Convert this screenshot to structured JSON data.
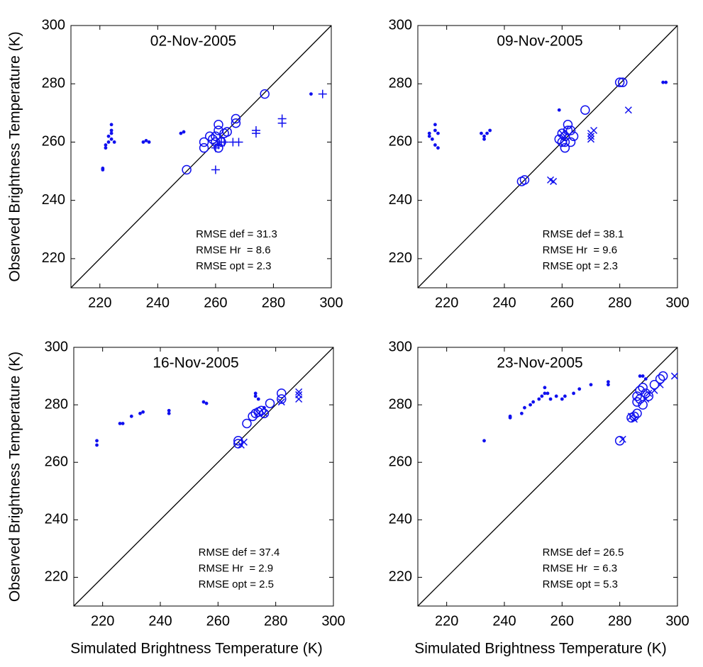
{
  "chart_data": [
    {
      "type": "scatter",
      "title": "02-Nov-2005",
      "ylabel": "Observed Brightness Temperature (K)",
      "xlim": [
        210,
        300
      ],
      "ylim": [
        210,
        300
      ],
      "xticks": [
        220,
        240,
        260,
        280,
        300
      ],
      "yticks": [
        220,
        240,
        260,
        280,
        300
      ],
      "identity_line": true,
      "series": [
        {
          "marker": "dot",
          "color": "#1010ee",
          "x": [
            221,
            221,
            222,
            222,
            223,
            223,
            224,
            224,
            224,
            224,
            225,
            235,
            236,
            237,
            248,
            249,
            293
          ],
          "y": [
            250.5,
            251,
            258,
            259,
            260,
            262,
            263,
            264,
            266,
            261,
            260,
            260,
            260.5,
            260,
            263,
            263.5,
            276.5
          ]
        },
        {
          "marker": "plus",
          "color": "#1010ee",
          "x": [
            297,
            283,
            283,
            274,
            274,
            268,
            266,
            260,
            261,
            262,
            263,
            260
          ],
          "y": [
            276.5,
            266.5,
            268,
            263,
            264,
            260,
            260,
            250.5,
            259,
            260,
            260,
            258
          ]
        },
        {
          "marker": "circle",
          "color": "#1010ee",
          "x": [
            277,
            267,
            267,
            264,
            263,
            261,
            261,
            260,
            259,
            260,
            262,
            256,
            256,
            258,
            250,
            261
          ],
          "y": [
            276.5,
            268,
            266.5,
            263.5,
            263,
            266,
            264,
            262,
            261,
            260,
            260,
            260,
            258,
            262,
            250.5,
            258
          ]
        }
      ],
      "annotations": [
        "RMSE def = 31.3",
        "RMSE Hr  = 8.6",
        "RMSE opt = 2.3"
      ]
    },
    {
      "type": "scatter",
      "title": "09-Nov-2005",
      "xlim": [
        210,
        300
      ],
      "ylim": [
        210,
        300
      ],
      "xticks": [
        220,
        240,
        260,
        280,
        300
      ],
      "yticks": [
        220,
        240,
        260,
        280,
        300
      ],
      "identity_line": true,
      "series": [
        {
          "marker": "dot",
          "color": "#1010ee",
          "x": [
            214,
            214,
            215,
            216,
            216,
            217,
            216,
            217,
            232,
            233,
            234,
            235,
            233,
            259,
            295,
            296
          ],
          "y": [
            262,
            263,
            261,
            264,
            266,
            263,
            259,
            258,
            263,
            262,
            263,
            264,
            261,
            271,
            280.5,
            280.5
          ]
        },
        {
          "marker": "cross",
          "color": "#1010ee",
          "x": [
            283,
            271,
            270,
            270,
            270,
            256,
            257,
            260,
            261
          ],
          "y": [
            271,
            264,
            262,
            261,
            263,
            247,
            246.5,
            263,
            262
          ]
        },
        {
          "marker": "circle",
          "color": "#1010ee",
          "x": [
            280,
            281,
            268,
            247,
            246,
            260,
            261,
            259,
            262,
            262,
            261,
            263,
            261,
            264,
            263,
            260
          ],
          "y": [
            280.5,
            280.5,
            271,
            247,
            246.5,
            263,
            262,
            261,
            264,
            266,
            258,
            260,
            260,
            262,
            264,
            260
          ]
        }
      ],
      "annotations": [
        "RMSE def = 38.1",
        "RMSE Hr  = 9.6",
        "RMSE opt = 2.3"
      ]
    },
    {
      "type": "scatter",
      "title": "16-Nov-2005",
      "ylabel": "Observed Brightness Temperature (K)",
      "xlabel": "Simulated Brightness Temperature (K)",
      "xlim": [
        210,
        300
      ],
      "ylim": [
        210,
        300
      ],
      "xticks": [
        220,
        240,
        260,
        280,
        300
      ],
      "yticks": [
        220,
        240,
        260,
        280,
        300
      ],
      "identity_line": true,
      "series": [
        {
          "marker": "dot",
          "color": "#1010ee",
          "x": [
            218,
            218,
            226,
            227,
            230,
            233,
            234,
            243,
            243,
            255,
            256,
            273,
            273,
            274,
            276
          ],
          "y": [
            266,
            267.5,
            273.5,
            273.5,
            276,
            277,
            277.5,
            277,
            278,
            281,
            280.5,
            284,
            283,
            282,
            279
          ]
        },
        {
          "marker": "cross",
          "color": "#1010ee",
          "x": [
            288,
            288,
            288,
            282,
            276,
            269,
            268,
            274
          ],
          "y": [
            282,
            283.5,
            284.5,
            281,
            277,
            267,
            266,
            277
          ]
        },
        {
          "marker": "circle",
          "color": "#1010ee",
          "x": [
            282,
            282,
            278,
            275,
            274,
            272,
            270,
            267,
            267,
            276,
            273
          ],
          "y": [
            284,
            282,
            280.5,
            278,
            277.5,
            276,
            273.5,
            267.5,
            266.5,
            277,
            277
          ]
        }
      ],
      "annotations": [
        "RMSE def = 37.4",
        "RMSE Hr  = 2.9",
        "RMSE opt = 2.5"
      ]
    },
    {
      "type": "scatter",
      "title": "23-Nov-2005",
      "xlabel": "Simulated Brightness Temperature (K)",
      "xlim": [
        210,
        300
      ],
      "ylim": [
        210,
        300
      ],
      "xticks": [
        220,
        240,
        260,
        280,
        300
      ],
      "yticks": [
        220,
        240,
        260,
        280,
        300
      ],
      "identity_line": true,
      "series": [
        {
          "marker": "dot",
          "color": "#1010ee",
          "x": [
            233,
            242,
            242,
            246,
            247,
            249,
            250,
            252,
            253,
            254,
            254,
            255,
            256,
            258,
            260,
            261,
            264,
            266,
            270,
            276,
            276,
            287,
            288,
            289
          ],
          "y": [
            267.5,
            275.5,
            276,
            277,
            279,
            280,
            281,
            282,
            283,
            284,
            286,
            284,
            282,
            283,
            282,
            283,
            284,
            285.5,
            287,
            287,
            288,
            290,
            290,
            289
          ]
        },
        {
          "marker": "cross",
          "color": "#1010ee",
          "x": [
            299,
            294,
            292,
            290,
            289,
            281,
            284,
            285
          ],
          "y": [
            290,
            287,
            285,
            284,
            282,
            268,
            276,
            275
          ]
        },
        {
          "marker": "circle",
          "color": "#1010ee",
          "x": [
            280,
            284,
            285,
            286,
            288,
            287,
            286,
            287,
            289,
            290,
            292,
            294,
            295,
            288,
            286
          ],
          "y": [
            267.5,
            275.5,
            276,
            277,
            280,
            282,
            283,
            285,
            284,
            283,
            287,
            289,
            290,
            286,
            281
          ]
        }
      ],
      "annotations": [
        "RMSE def = 26.5",
        "RMSE Hr  = 6.3",
        "RMSE opt = 5.3"
      ]
    }
  ]
}
